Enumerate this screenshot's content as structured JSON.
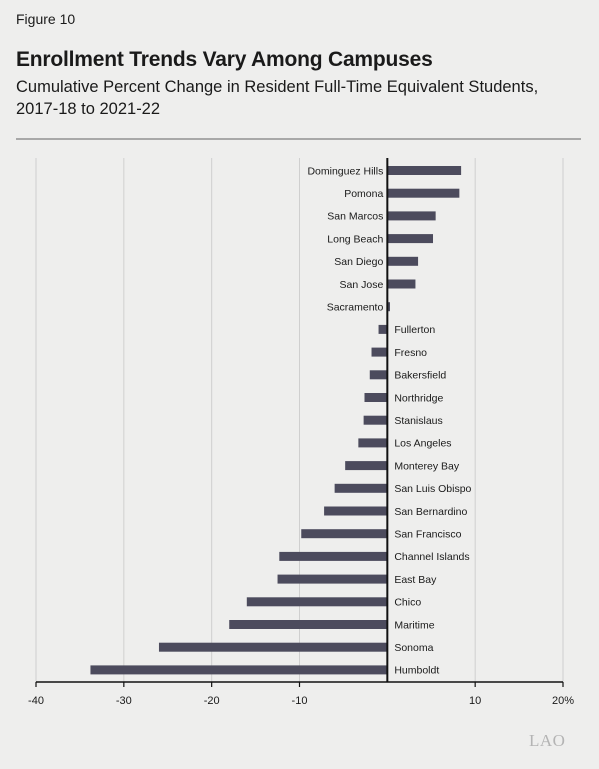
{
  "figure_label": "Figure 10",
  "title": "Enrollment Trends Vary Among Campuses",
  "subtitle": "Cumulative Percent Change in Resident Full-Time Equivalent Students, 2017-18 to 2021-22",
  "logo_text": "LAO",
  "colors": {
    "bar": "#4c4b5d",
    "background": "#eeeeed",
    "grid": "#cfcfcf",
    "rule": "#a8a8a8"
  },
  "chart_data": {
    "type": "bar",
    "orientation": "horizontal",
    "title": "Enrollment Trends Vary Among Campuses",
    "subtitle": "Cumulative Percent Change in Resident Full-Time Equivalent Students, 2017-18 to 2021-22",
    "xlim": [
      -40,
      20
    ],
    "x_ticks": [
      -40,
      -30,
      -20,
      -10,
      10,
      20
    ],
    "x_tick_labels": [
      "-40",
      "-30",
      "-20",
      "-10",
      "10",
      "20%"
    ],
    "grid": true,
    "categories": [
      "Dominguez Hills",
      "Pomona",
      "San Marcos",
      "Long Beach",
      "San Diego",
      "San Jose",
      "Sacramento",
      "Fullerton",
      "Fresno",
      "Bakersfield",
      "Northridge",
      "Stanislaus",
      "Los Angeles",
      "Monterey Bay",
      "San Luis Obispo",
      "San Bernardino",
      "San Francisco",
      "Channel Islands",
      "East Bay",
      "Chico",
      "Maritime",
      "Sonoma",
      "Humboldt"
    ],
    "values": [
      8.4,
      8.2,
      5.5,
      5.2,
      3.5,
      3.2,
      0.3,
      -1.0,
      -1.8,
      -2.0,
      -2.6,
      -2.7,
      -3.3,
      -4.8,
      -6.0,
      -7.2,
      -9.8,
      -12.3,
      -12.5,
      -16.0,
      -18.0,
      -26.0,
      -33.8
    ]
  }
}
